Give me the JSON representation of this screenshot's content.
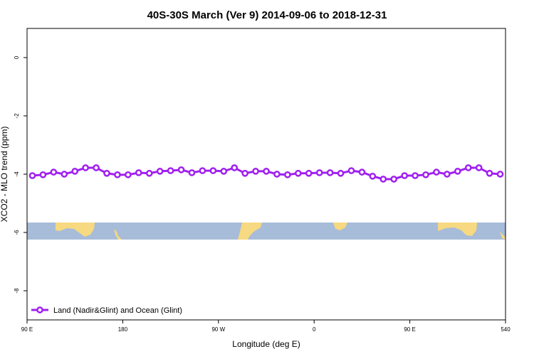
{
  "chart_data": {
    "type": "line",
    "title": "40S-30S March (Ver 9)   2014-09-06 to 2018-12-31",
    "x_label": "Longitude (deg E)",
    "y_label": "XCO2 - MLO trend (ppm)",
    "x": [
      95,
      105,
      115,
      125,
      135,
      145,
      155,
      165,
      175,
      185,
      195,
      205,
      215,
      225,
      235,
      245,
      255,
      265,
      275,
      285,
      295,
      305,
      315,
      325,
      335,
      345,
      355,
      365,
      375,
      385,
      395,
      405,
      415,
      425,
      435,
      445,
      455,
      465,
      475,
      485,
      495,
      505,
      515,
      525,
      535
    ],
    "series": [
      {
        "name": "Land (Nadir&Glint) and Ocean (Glint)",
        "color": "#a020f0",
        "values": [
          -4.05,
          -4.02,
          -3.93,
          -4.0,
          -3.9,
          -3.78,
          -3.78,
          -3.97,
          -4.02,
          -4.02,
          -3.95,
          -3.97,
          -3.9,
          -3.88,
          -3.85,
          -3.95,
          -3.88,
          -3.88,
          -3.9,
          -3.78,
          -3.97,
          -3.9,
          -3.9,
          -4.0,
          -4.02,
          -3.97,
          -3.97,
          -3.95,
          -3.95,
          -3.97,
          -3.88,
          -3.93,
          -4.07,
          -4.17,
          -4.17,
          -4.05,
          -4.05,
          -4.02,
          -3.93,
          -4.0,
          -3.9,
          -3.78,
          -3.78,
          -3.97,
          -4.0
        ]
      }
    ],
    "xlim": [
      90,
      540
    ],
    "xticks": [
      {
        "value": 90,
        "label": "90 E"
      },
      180,
      {
        "value": 270,
        "label": "90 W"
      },
      {
        "value": 360,
        "label": "0"
      },
      {
        "value": 450,
        "label": "90 E"
      },
      540
    ],
    "ylim": [
      -9,
      1
    ],
    "yticks": [
      0,
      -2,
      -4,
      -6,
      -8
    ],
    "legend": "bottomleft"
  }
}
